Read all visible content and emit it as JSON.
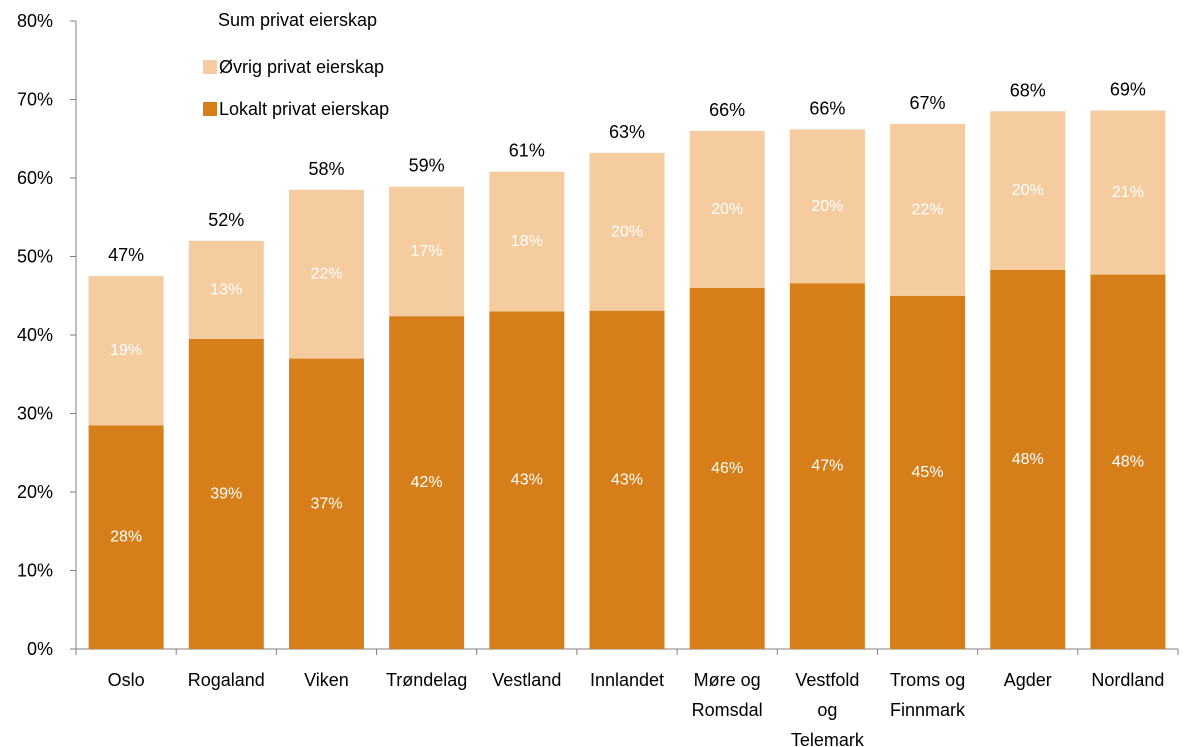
{
  "chart_data": {
    "type": "bar",
    "stacked": true,
    "categories": [
      [
        "Oslo"
      ],
      [
        "Rogaland"
      ],
      [
        "Viken"
      ],
      [
        "Trøndelag"
      ],
      [
        "Vestland"
      ],
      [
        "Innlandet"
      ],
      [
        "Møre og",
        "Romsdal"
      ],
      [
        "Vestfold",
        "og",
        "Telemark"
      ],
      [
        "Troms og",
        "Finnmark"
      ],
      [
        "Agder"
      ],
      [
        "Nordland"
      ]
    ],
    "series": [
      {
        "name": "Lokalt privat eierskap",
        "color": "#d67f1a",
        "values": [
          28.5,
          39.5,
          37.0,
          42.4,
          43.0,
          43.1,
          46.0,
          46.6,
          45.0,
          48.3,
          47.7
        ],
        "labels": [
          "28%",
          "39%",
          "37%",
          "42%",
          "43%",
          "43%",
          "46%",
          "47%",
          "45%",
          "48%",
          "48%"
        ]
      },
      {
        "name": "Øvrig privat eierskap",
        "color": "#f5cc9f",
        "values": [
          19.0,
          12.5,
          21.5,
          16.5,
          17.8,
          20.1,
          20.0,
          19.6,
          21.9,
          20.2,
          20.9
        ],
        "labels": [
          "19%",
          "13%",
          "22%",
          "17%",
          "18%",
          "20%",
          "20%",
          "20%",
          "22%",
          "20%",
          "21%"
        ]
      }
    ],
    "totals": {
      "name": "Sum privat eierskap",
      "labels": [
        "47%",
        "52%",
        "58%",
        "59%",
        "61%",
        "63%",
        "66%",
        "66%",
        "67%",
        "68%",
        "69%"
      ]
    },
    "yticks": [
      "0%",
      "10%",
      "20%",
      "30%",
      "40%",
      "50%",
      "60%",
      "70%",
      "80%"
    ],
    "ylim": [
      0,
      80
    ],
    "grid": false,
    "legend_position": "top-left"
  }
}
